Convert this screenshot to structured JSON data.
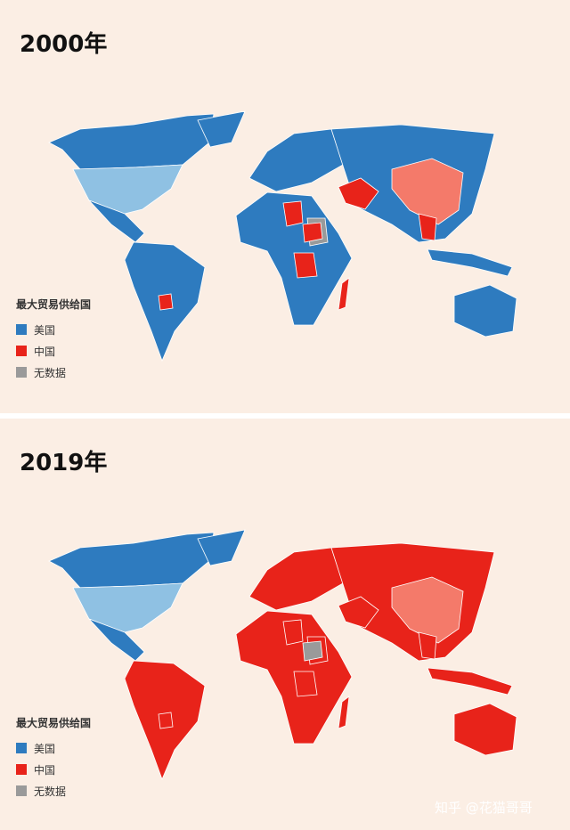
{
  "panels": [
    {
      "title": "2000年",
      "legend": {
        "title": "最大贸易供给国",
        "items": [
          {
            "label": "美国",
            "color": "#2e7bbf"
          },
          {
            "label": "中国",
            "color": "#e8231a"
          },
          {
            "label": "无数据",
            "color": "#9a9a9a"
          }
        ]
      }
    },
    {
      "title": "2019年",
      "legend": {
        "title": "最大贸易供给国",
        "items": [
          {
            "label": "美国",
            "color": "#2e7bbf"
          },
          {
            "label": "中国",
            "color": "#e8231a"
          },
          {
            "label": "无数据",
            "color": "#9a9a9a"
          }
        ]
      }
    }
  ],
  "watermark": "知乎 @花猫哥哥"
}
